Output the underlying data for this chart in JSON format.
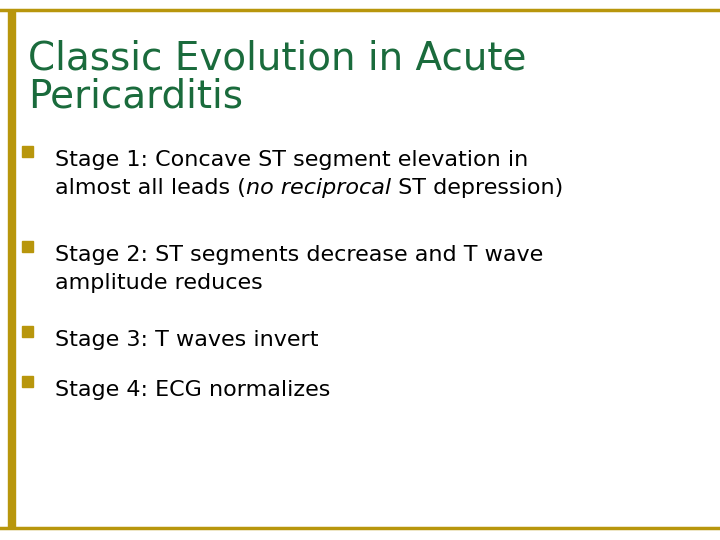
{
  "title_line1": "Classic Evolution in Acute",
  "title_line2": "Pericarditis",
  "title_color": "#1a6b3c",
  "title_fontsize": 28,
  "background_color": "#ffffff",
  "border_color": "#b8960c",
  "left_bar_color": "#b8960c",
  "bullet_color": "#b8960c",
  "body_fontsize": 16,
  "body_color": "#000000",
  "bullets": [
    {
      "line1_parts": [
        [
          "Stage 1: Concave ST segment elevation in",
          "normal"
        ]
      ],
      "line2_parts": [
        [
          "almost all leads (",
          "normal"
        ],
        [
          "no reciprocal",
          "italic"
        ],
        [
          " ST depression)",
          "normal"
        ]
      ]
    },
    {
      "line1_parts": [
        [
          "Stage 2: ST segments decrease and T wave",
          "normal"
        ]
      ],
      "line2_parts": [
        [
          "amplitude reduces",
          "normal"
        ]
      ]
    },
    {
      "line1_parts": [
        [
          "Stage 3: T waves invert",
          "normal"
        ]
      ],
      "line2_parts": []
    },
    {
      "line1_parts": [
        [
          "Stage 4: ECG normalizes",
          "normal"
        ]
      ],
      "line2_parts": []
    }
  ]
}
